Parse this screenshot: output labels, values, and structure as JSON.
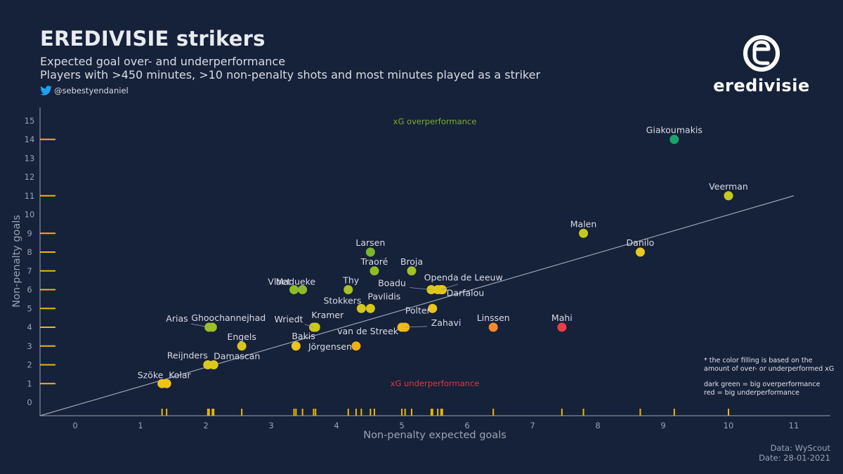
{
  "header": {
    "title": "EREDIVISIE strikers",
    "subtitle_line1": "Expected goal over- and underperformance",
    "subtitle_line2": "Players with >450 minutes, >10 non-penalty shots and most minutes played as a striker",
    "twitter_handle": "@sebestyendaniel"
  },
  "logo": {
    "text": "eredivisie",
    "icon": "eredivisie-logo-icon"
  },
  "note": {
    "line1": "* the color filling is based on the",
    "line2": "amount of over- or underperformed xG",
    "line3": "dark green = big overperformance",
    "line4": "red = big underperformance"
  },
  "source": {
    "data": "Data: WyScout",
    "date": "Date: 28-01-2021"
  },
  "colors": {
    "background": "#16213a",
    "rug": "#f0b800",
    "diagonal": "#9ba3b0",
    "overperformance_text": "#7fae2a",
    "underperformance_text": "#e0393e"
  },
  "chart_data": {
    "type": "scatter",
    "xlabel": "Non-penalty expected goals",
    "ylabel": "Non-penalty goals",
    "xlim": [
      0,
      11
    ],
    "ylim": [
      0,
      15
    ],
    "xticks": [
      0,
      1,
      2,
      3,
      4,
      5,
      6,
      7,
      8,
      9,
      10,
      11
    ],
    "yticks": [
      0,
      1,
      2,
      3,
      4,
      5,
      6,
      7,
      8,
      9,
      10,
      11,
      12,
      13,
      14,
      15
    ],
    "reference_line": "y = x",
    "rug_plots": true,
    "region_labels": {
      "over": "xG overperformance",
      "under": "xG underperformance"
    },
    "points": [
      {
        "name": "Giakoumakis",
        "x": 9.17,
        "y": 14,
        "color": "#1aa36a"
      },
      {
        "name": "Veerman",
        "x": 10.0,
        "y": 11,
        "color": "#c6c81c"
      },
      {
        "name": "Malen",
        "x": 7.78,
        "y": 9,
        "color": "#c6c81c"
      },
      {
        "name": "Danilo",
        "x": 8.65,
        "y": 8,
        "color": "#e8c81c"
      },
      {
        "name": "Larsen",
        "x": 4.52,
        "y": 8,
        "color": "#79b62c"
      },
      {
        "name": "Traoré",
        "x": 4.58,
        "y": 7,
        "color": "#8dbb28"
      },
      {
        "name": "Broja",
        "x": 5.15,
        "y": 7,
        "color": "#a0c226"
      },
      {
        "name": "Vloet",
        "x": 3.35,
        "y": 6,
        "color": "#8dbb28"
      },
      {
        "name": "Madueke",
        "x": 3.48,
        "y": 6,
        "color": "#8dbb28"
      },
      {
        "name": "Thy",
        "x": 4.18,
        "y": 6,
        "color": "#a8c224"
      },
      {
        "name": "Boadu",
        "x": 5.45,
        "y": 6,
        "color": "#dfc81c"
      },
      {
        "name": "Openda",
        "x": 5.55,
        "y": 6,
        "color": "#dfc81c"
      },
      {
        "name": "de Leeuw",
        "x": 5.6,
        "y": 6,
        "color": "#dfc81c"
      },
      {
        "name": "Darfalou",
        "x": 5.62,
        "y": 6,
        "color": "#dfc81c"
      },
      {
        "name": "Stokkers",
        "x": 4.38,
        "y": 5,
        "color": "#d6c61c"
      },
      {
        "name": "Pavlidis",
        "x": 4.52,
        "y": 5,
        "color": "#d6c61c"
      },
      {
        "name": "Polter",
        "x": 5.47,
        "y": 5,
        "color": "#eac41c"
      },
      {
        "name": "Arias",
        "x": 2.05,
        "y": 4,
        "color": "#9cc026"
      },
      {
        "name": "Ghoochannejhad",
        "x": 2.1,
        "y": 4,
        "color": "#9cc026"
      },
      {
        "name": "Wriedt",
        "x": 3.65,
        "y": 4,
        "color": "#cac81c"
      },
      {
        "name": "Kramer",
        "x": 3.68,
        "y": 4,
        "color": "#cac81c"
      },
      {
        "name": "van de Streek",
        "x": 5.0,
        "y": 4,
        "color": "#f0ba16"
      },
      {
        "name": "Zahavi",
        "x": 5.05,
        "y": 4,
        "color": "#f0ba16"
      },
      {
        "name": "Linssen",
        "x": 6.4,
        "y": 4,
        "color": "#f58a2c"
      },
      {
        "name": "Mahi",
        "x": 7.45,
        "y": 4,
        "color": "#ea3e44"
      },
      {
        "name": "Engels",
        "x": 2.55,
        "y": 3,
        "color": "#d6c61c"
      },
      {
        "name": "Bakis",
        "x": 3.38,
        "y": 3,
        "color": "#ecc41c"
      },
      {
        "name": "Jörgensen",
        "x": 4.3,
        "y": 3,
        "color": "#f2b016"
      },
      {
        "name": "Reijnders",
        "x": 2.03,
        "y": 2,
        "color": "#dcc81c"
      },
      {
        "name": "Damascan",
        "x": 2.12,
        "y": 2,
        "color": "#dcc81c"
      },
      {
        "name": "Szöke",
        "x": 1.33,
        "y": 1,
        "color": "#eec41c"
      },
      {
        "name": "Kolar",
        "x": 1.4,
        "y": 1,
        "color": "#eec41c"
      }
    ]
  }
}
